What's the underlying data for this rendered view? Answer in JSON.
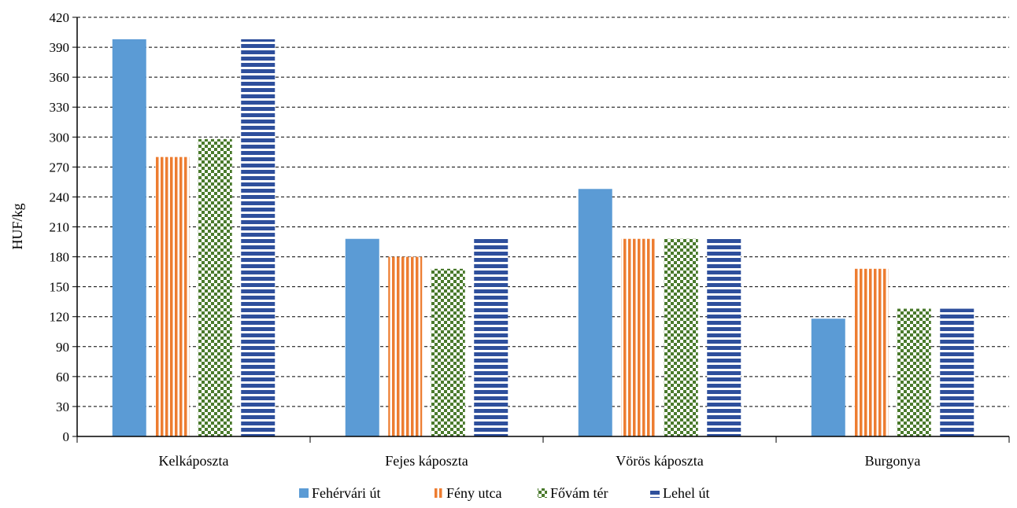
{
  "chart_data": {
    "type": "bar",
    "title": "",
    "xlabel": "",
    "ylabel": "HUF/kg",
    "ylim": [
      0,
      420
    ],
    "yticks": [
      0,
      30,
      60,
      90,
      120,
      150,
      180,
      210,
      240,
      270,
      300,
      330,
      360,
      390,
      420
    ],
    "grid": true,
    "legend_position": "bottom",
    "categories": [
      "Kelkáposzta",
      "Fejes káposzta",
      "Vörös káposzta",
      "Burgonya"
    ],
    "series": [
      {
        "name": "Fehérvári út",
        "pattern": "solid",
        "color": "#5b9bd5",
        "values": [
          398,
          198,
          248,
          118
        ]
      },
      {
        "name": "Fény utca",
        "pattern": "vertical-stripes",
        "color": "#ed7d31",
        "values": [
          280,
          180,
          198,
          168
        ]
      },
      {
        "name": "Fővám tér",
        "pattern": "checker",
        "color": "#4a7a2c",
        "values": [
          298,
          168,
          198,
          128
        ]
      },
      {
        "name": "Lehel út",
        "pattern": "horizontal-stripes",
        "color": "#2e4f9c",
        "values": [
          398,
          198,
          198,
          128
        ]
      }
    ]
  }
}
